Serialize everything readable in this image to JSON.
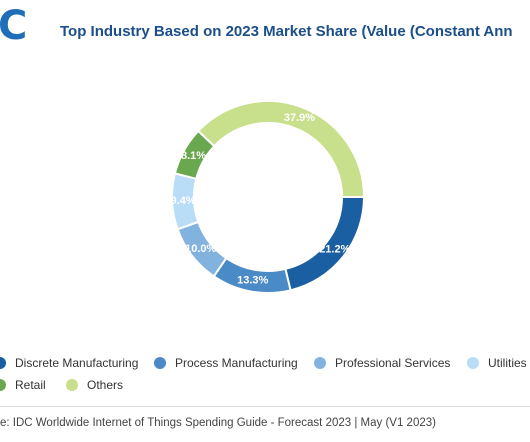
{
  "logo_text": "C",
  "title": "Top Industry Based on 2023 Market Share (Value (Constant Ann",
  "source": "e: IDC Worldwide Internet of Things Spending Guide - Forecast 2023 | May (V1 2023)",
  "chart_data": {
    "type": "pie",
    "donut": true,
    "title": "Top Industry Based on 2023 Market Share (Value (Constant Ann",
    "unit": "%",
    "categories": [
      "Discrete Manufacturing",
      "Process Manufacturing",
      "Professional Services",
      "Utilities",
      "Retail",
      "Others"
    ],
    "values": [
      21.2,
      13.3,
      10.0,
      9.4,
      8.1,
      37.9
    ],
    "labels": [
      "21.2%",
      "13.3%",
      "10.0%",
      "9.4%",
      "8.1%",
      "37.9%"
    ],
    "colors": [
      "#1a5fa2",
      "#4a8ac6",
      "#82b3df",
      "#b9dcf7",
      "#6aa84f",
      "#c8df8c"
    ],
    "legend_position": "bottom"
  }
}
